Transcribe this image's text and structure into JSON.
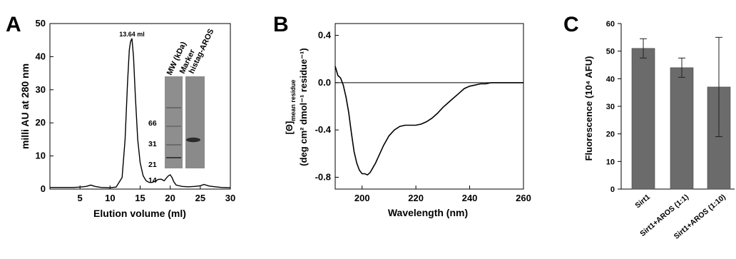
{
  "panels": {
    "A": {
      "letter": "A"
    },
    "B": {
      "letter": "B"
    },
    "C": {
      "letter": "C"
    }
  },
  "chart_data": [
    {
      "type": "line",
      "panel": "A",
      "xlabel": "Elution volume (ml)",
      "ylabel": "milli AU at 280 nm",
      "xlim": [
        0,
        30
      ],
      "ylim": [
        0,
        50
      ],
      "xticks": [
        5,
        10,
        15,
        20,
        25,
        30
      ],
      "yticks": [
        0,
        10,
        20,
        30,
        40,
        50
      ],
      "x": [
        0,
        4,
        5,
        6,
        6.8,
        7.5,
        8.5,
        10,
        11,
        12,
        12.5,
        12.9,
        13.2,
        13.4,
        13.64,
        13.9,
        14.2,
        14.6,
        15,
        15.5,
        16,
        16.5,
        17,
        17.5,
        18,
        18.5,
        19,
        19.4,
        19.7,
        20,
        20.3,
        20.6,
        21,
        22,
        23,
        24,
        25,
        25.6,
        26.5,
        27.5,
        28.5,
        30
      ],
      "y": [
        0.5,
        0.5,
        0.6,
        0.8,
        1.2,
        0.8,
        0.5,
        0.4,
        0.6,
        3.5,
        15,
        32,
        42,
        44.5,
        45.5,
        40,
        28,
        15,
        8,
        4,
        2.5,
        2,
        2,
        2.4,
        2.9,
        3,
        2.5,
        3.4,
        4,
        4.3,
        3.5,
        2.2,
        1.2,
        0.8,
        0.7,
        0.8,
        1.0,
        1.4,
        0.9,
        0.7,
        0.5,
        0.4
      ],
      "annotations": [
        "13.64 ml"
      ],
      "inset": {
        "title": "MW (kDa)",
        "lane_labels": [
          "Marker",
          "histag-AROS"
        ],
        "mw_markers": [
          "66",
          "31",
          "21",
          "14"
        ]
      }
    },
    {
      "type": "line",
      "panel": "B",
      "xlabel": "Wavelength (nm)",
      "ylabel_line1": "[Θ]",
      "ylabel_sub": "mean residue",
      "ylabel_line2": "(deg cm² dmol⁻¹ residue⁻¹)",
      "xlim": [
        190,
        260
      ],
      "ylim": [
        -0.9,
        0.5
      ],
      "xticks": [
        200,
        220,
        240,
        260
      ],
      "yticks": [
        0.4,
        0.0,
        -0.4,
        -0.8
      ],
      "x": [
        190,
        191,
        192,
        193,
        194,
        195,
        196,
        197,
        198,
        199,
        200,
        201,
        202,
        203,
        204,
        205,
        206,
        208,
        210,
        212,
        214,
        216,
        218,
        220,
        222,
        224,
        226,
        228,
        230,
        232,
        234,
        236,
        238,
        240,
        242,
        244,
        246,
        248,
        250,
        255,
        260
      ],
      "y": [
        0.14,
        0.06,
        0.04,
        -0.02,
        -0.12,
        -0.25,
        -0.42,
        -0.58,
        -0.68,
        -0.74,
        -0.77,
        -0.77,
        -0.78,
        -0.76,
        -0.72,
        -0.68,
        -0.63,
        -0.53,
        -0.45,
        -0.4,
        -0.37,
        -0.36,
        -0.36,
        -0.36,
        -0.35,
        -0.33,
        -0.3,
        -0.26,
        -0.21,
        -0.17,
        -0.13,
        -0.09,
        -0.05,
        -0.03,
        -0.02,
        -0.01,
        -0.01,
        0.0,
        0.0,
        0.0,
        0.0
      ]
    },
    {
      "type": "bar",
      "panel": "C",
      "categories": [
        "Sirt1",
        "Sirt1+AROS (1:1)",
        "Sirt1+AROS (1:10)"
      ],
      "values": [
        51,
        44,
        37
      ],
      "errors": [
        3.5,
        3.5,
        18
      ],
      "ylabel": "Fluorescence (10⁴ AFU)",
      "ylim": [
        0,
        60
      ],
      "yticks": [
        0,
        10,
        20,
        30,
        40,
        50,
        60
      ]
    }
  ],
  "colors": {
    "bar": "#6b6b6b",
    "line": "#000000"
  }
}
